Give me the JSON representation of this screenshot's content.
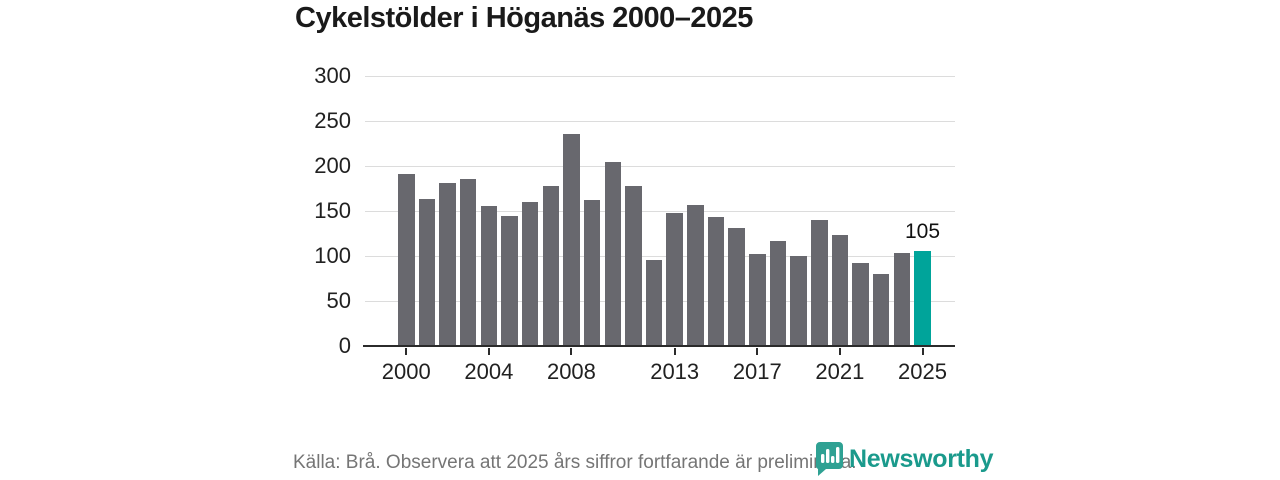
{
  "header": {
    "title": "Cykelstölder i Höganäs 2000–2025"
  },
  "chart_data": {
    "type": "bar",
    "title": "Cykelstölder i Höganäs 2000–2025",
    "categories": [
      2000,
      2001,
      2002,
      2003,
      2004,
      2005,
      2006,
      2007,
      2008,
      2009,
      2010,
      2011,
      2012,
      2013,
      2014,
      2015,
      2016,
      2017,
      2018,
      2019,
      2020,
      2021,
      2022,
      2023,
      2024,
      2025
    ],
    "values": [
      190,
      162,
      180,
      184,
      155,
      143,
      159,
      177,
      234,
      161,
      203,
      177,
      95,
      147,
      156,
      142,
      130,
      101,
      116,
      99,
      139,
      122,
      91,
      79,
      102,
      105
    ],
    "xlabel": "",
    "ylabel": "",
    "ylim": [
      0,
      300
    ],
    "yticks": [
      0,
      50,
      100,
      150,
      200,
      250,
      300
    ],
    "xticks": [
      2000,
      2004,
      2008,
      2013,
      2017,
      2021,
      2025
    ],
    "grid": true,
    "legend": "none",
    "highlight": {
      "year": 2025,
      "value_label": "105"
    },
    "colors": {
      "bar": "#68686e",
      "highlight_bar": "#00a49a",
      "gridline": "#dcdcdc",
      "axis": "#2b2b2b",
      "tick_text": "#212121",
      "value_label": "#111111"
    }
  },
  "footer": {
    "source_note": "Källa: Brå. Observera att 2025 års siffror fortfarande är preliminära.",
    "brand_name": "Newsworthy",
    "brand_color": "#1a9a8c",
    "brand_icon": "bar-chart-badge-icon",
    "brand_icon_color": "#2fa193"
  }
}
